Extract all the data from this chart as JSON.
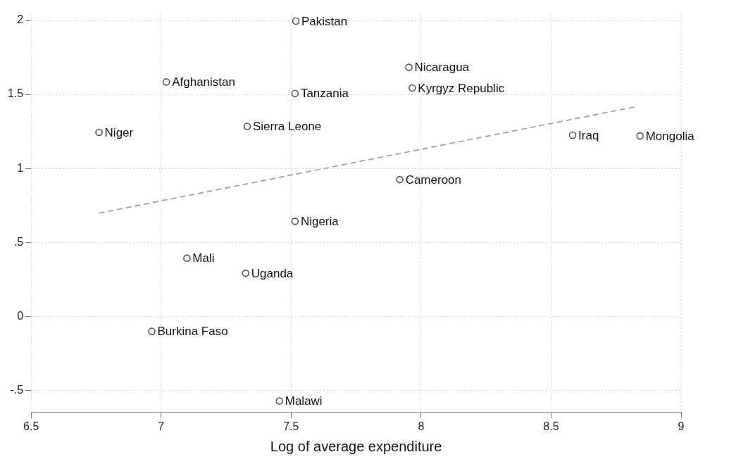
{
  "chart_data": {
    "type": "scatter",
    "xlabel": "Log of average expenditure",
    "series": [
      {
        "type": "scatter",
        "color": "#555555",
        "x": [
          7.518,
          7.953,
          7.02,
          7.515,
          7.966,
          6.761,
          7.331,
          8.583,
          8.842,
          7.918,
          7.515,
          7.099,
          7.325,
          6.964,
          7.455
        ],
        "values": [
          1.995,
          1.683,
          1.584,
          1.506,
          1.543,
          1.243,
          1.284,
          1.224,
          1.219,
          0.924,
          0.642,
          0.393,
          0.291,
          -0.102,
          -0.573
        ],
        "marker": "circle"
      },
      {
        "type": "line",
        "color": "#999999",
        "x": [
          6.761,
          8.829
        ],
        "values": [
          0.697,
          1.418
        ],
        "line_style": "dashed",
        "marker": "none"
      }
    ],
    "annotations": [
      {
        "text": "Pakistan",
        "x": 7.518,
        "y": 1.995
      },
      {
        "text": "Nicaragua",
        "x": 7.953,
        "y": 1.683
      },
      {
        "text": "Afghanistan",
        "x": 7.02,
        "y": 1.584
      },
      {
        "text": "Tanzania",
        "x": 7.515,
        "y": 1.506
      },
      {
        "text": "Kyrgyz Republic",
        "x": 7.966,
        "y": 1.543
      },
      {
        "text": "Niger",
        "x": 6.761,
        "y": 1.243
      },
      {
        "text": "Sierra Leone",
        "x": 7.331,
        "y": 1.284
      },
      {
        "text": "Iraq",
        "x": 8.583,
        "y": 1.224
      },
      {
        "text": "Mongolia",
        "x": 8.842,
        "y": 1.219
      },
      {
        "text": "Cameroon",
        "x": 7.918,
        "y": 0.924
      },
      {
        "text": "Nigeria",
        "x": 7.515,
        "y": 0.642
      },
      {
        "text": "Mali",
        "x": 7.099,
        "y": 0.393
      },
      {
        "text": "Uganda",
        "x": 7.325,
        "y": 0.291
      },
      {
        "text": "Burkina Faso",
        "x": 6.964,
        "y": -0.102
      },
      {
        "text": "Malawi",
        "x": 7.455,
        "y": -0.573
      }
    ],
    "xlim": [
      6.5,
      9
    ],
    "xticks": [
      6.5,
      7,
      7.5,
      8,
      8.5,
      9
    ],
    "ylim": [
      -0.65,
      2.04
    ],
    "yticks": [
      {
        "value": 2,
        "label": "2"
      },
      {
        "value": 1.5,
        "label": "1.5"
      },
      {
        "value": 1,
        "label": "1"
      },
      {
        "value": 0.5,
        "label": ".5"
      },
      {
        "value": 0,
        "label": "0"
      },
      {
        "value": -0.5,
        "label": "-.5"
      }
    ],
    "grid": true,
    "legend": false
  }
}
